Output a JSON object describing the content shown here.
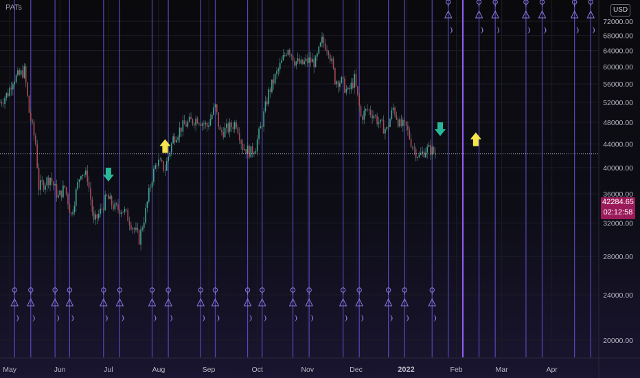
{
  "header": {
    "title": "PATs",
    "currency": "USD"
  },
  "last_price": {
    "value": "42284.65",
    "countdown": "02:12:58",
    "level": 42284.65
  },
  "colors": {
    "vline": "#6a4fd6",
    "vline_bright": "#8d5cf0",
    "symbol": "#8a7ce0",
    "candle": "#5a7d80",
    "candle_up": "#3fbfa4",
    "candle_down": "#c24a5a",
    "arrow_up": "#f4e64a",
    "arrow_down": "#28b899",
    "price_tag": "#9b1b5a",
    "axis_text": "#b8b8c4",
    "grid": "#1c1c26"
  },
  "chart_data": {
    "type": "candlestick",
    "title": "PATs",
    "currency": "USD",
    "x_range": [
      "2021-04-25",
      "2022-04-30"
    ],
    "ylim": [
      16000,
      74000
    ],
    "log_scale": true,
    "grid": true,
    "y_ticks": [
      "72000.00",
      "68000.00",
      "64000.00",
      "60000.00",
      "56000.00",
      "52000.00",
      "48000.00",
      "44000.00",
      "40000.00",
      "36000.00",
      "32000.00",
      "28000.00",
      "24000.00",
      "20000.00"
    ],
    "x_ticks": [
      {
        "label": "May",
        "date": "2021-05-01"
      },
      {
        "label": "Jun",
        "date": "2021-06-01"
      },
      {
        "label": "Jul",
        "date": "2021-07-01"
      },
      {
        "label": "Aug",
        "date": "2021-08-01"
      },
      {
        "label": "Sep",
        "date": "2021-09-01"
      },
      {
        "label": "Oct",
        "date": "2021-10-01"
      },
      {
        "label": "Nov",
        "date": "2021-11-01"
      },
      {
        "label": "Dec",
        "date": "2021-12-01"
      },
      {
        "label": "2022",
        "date": "2022-01-01"
      },
      {
        "label": "Feb",
        "date": "2022-02-01"
      },
      {
        "label": "Mar",
        "date": "2022-03-01"
      },
      {
        "label": "Apr",
        "date": "2022-04-01"
      }
    ],
    "price_path": [
      [
        "2021-04-25",
        52000
      ],
      [
        "2021-04-30",
        54000
      ],
      [
        "2021-05-03",
        57000
      ],
      [
        "2021-05-07",
        58000
      ],
      [
        "2021-05-10",
        59000
      ],
      [
        "2021-05-13",
        50000
      ],
      [
        "2021-05-17",
        44000
      ],
      [
        "2021-05-19",
        37000
      ],
      [
        "2021-05-22",
        37500
      ],
      [
        "2021-05-26",
        38500
      ],
      [
        "2021-05-31",
        35500
      ],
      [
        "2021-06-04",
        37000
      ],
      [
        "2021-06-08",
        33000
      ],
      [
        "2021-06-14",
        39500
      ],
      [
        "2021-06-18",
        38500
      ],
      [
        "2021-06-22",
        32000
      ],
      [
        "2021-06-26",
        33500
      ],
      [
        "2021-06-30",
        35500
      ],
      [
        "2021-07-05",
        34000
      ],
      [
        "2021-07-10",
        33800
      ],
      [
        "2021-07-15",
        32000
      ],
      [
        "2021-07-20",
        30000
      ],
      [
        "2021-07-24",
        33500
      ],
      [
        "2021-07-28",
        38500
      ],
      [
        "2021-07-31",
        41000
      ],
      [
        "2021-08-05",
        39800
      ],
      [
        "2021-08-10",
        45000
      ],
      [
        "2021-08-15",
        47000
      ],
      [
        "2021-08-20",
        48000
      ],
      [
        "2021-08-25",
        48800
      ],
      [
        "2021-08-31",
        47200
      ],
      [
        "2021-09-05",
        51000
      ],
      [
        "2021-09-08",
        46000
      ],
      [
        "2021-09-14",
        47000
      ],
      [
        "2021-09-18",
        48000
      ],
      [
        "2021-09-22",
        43500
      ],
      [
        "2021-09-27",
        42500
      ],
      [
        "2021-09-30",
        43600
      ],
      [
        "2021-10-04",
        48000
      ],
      [
        "2021-10-08",
        54000
      ],
      [
        "2021-10-12",
        57500
      ],
      [
        "2021-10-16",
        61000
      ],
      [
        "2021-10-20",
        65000
      ],
      [
        "2021-10-24",
        61500
      ],
      [
        "2021-10-28",
        60500
      ],
      [
        "2021-11-02",
        61500
      ],
      [
        "2021-11-06",
        61000
      ],
      [
        "2021-11-10",
        66500
      ],
      [
        "2021-11-14",
        64500
      ],
      [
        "2021-11-18",
        57000
      ],
      [
        "2021-11-22",
        56500
      ],
      [
        "2021-11-26",
        54000
      ],
      [
        "2021-11-30",
        57000
      ],
      [
        "2021-12-04",
        49000
      ],
      [
        "2021-12-08",
        50500
      ],
      [
        "2021-12-12",
        49500
      ],
      [
        "2021-12-16",
        47500
      ],
      [
        "2021-12-20",
        46500
      ],
      [
        "2021-12-24",
        50800
      ],
      [
        "2021-12-28",
        47500
      ],
      [
        "2022-01-01",
        47000
      ],
      [
        "2022-01-05",
        43500
      ],
      [
        "2022-01-09",
        41800
      ],
      [
        "2022-01-13",
        43000
      ],
      [
        "2022-01-16",
        43000
      ],
      [
        "2022-01-19",
        42284.65
      ]
    ],
    "phase_lines_lower": [
      "2021-05-04",
      "2021-05-14",
      "2021-05-29",
      "2021-06-07",
      "2021-06-28",
      "2021-07-08",
      "2021-07-28",
      "2021-08-07",
      "2021-08-27",
      "2021-09-05",
      "2021-09-25",
      "2021-10-04",
      "2021-10-23",
      "2021-11-02",
      "2021-11-23",
      "2021-12-03",
      "2021-12-21",
      "2021-12-31",
      "2022-01-17"
    ],
    "phase_lines_upper": [
      "2022-01-27",
      "2022-02-15",
      "2022-02-25",
      "2022-03-16",
      "2022-03-26",
      "2022-04-15",
      "2022-04-25"
    ],
    "bright_line": "2022-02-05",
    "arrows": [
      {
        "dir": "down",
        "date": "2021-07-01",
        "price": 39000
      },
      {
        "dir": "up",
        "date": "2021-08-05",
        "price": 43500
      },
      {
        "dir": "down",
        "date": "2022-01-22",
        "price": 46800
      },
      {
        "dir": "up",
        "date": "2022-02-13",
        "price": 44700
      }
    ],
    "last_value": 42284.65
  }
}
